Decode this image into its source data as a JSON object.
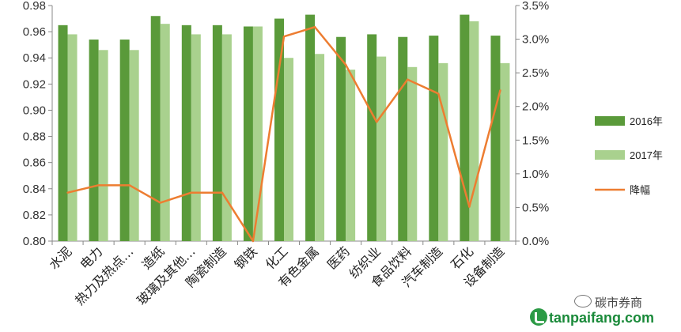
{
  "chart_data": {
    "type": "bar",
    "categories": [
      "水泥",
      "电力",
      "热力及热点…",
      "造纸",
      "玻璃及其他…",
      "陶瓷制造",
      "钢铁",
      "化工",
      "有色金属",
      "医药",
      "纺织业",
      "食品饮料",
      "汽车制造",
      "石化",
      "设备制造"
    ],
    "series": [
      {
        "name": "2016年",
        "axis": "left",
        "kind": "bar",
        "color": "#5a9a3a",
        "values": [
          0.965,
          0.954,
          0.954,
          0.972,
          0.965,
          0.965,
          0.964,
          0.97,
          0.973,
          0.956,
          0.958,
          0.956,
          0.957,
          0.973,
          0.957
        ]
      },
      {
        "name": "2017年",
        "axis": "left",
        "kind": "bar",
        "color": "#a9d18e",
        "values": [
          0.958,
          0.946,
          0.946,
          0.966,
          0.958,
          0.958,
          0.964,
          0.94,
          0.943,
          0.931,
          0.941,
          0.933,
          0.936,
          0.968,
          0.936
        ]
      },
      {
        "name": "降幅",
        "axis": "right",
        "kind": "line",
        "color": "#ed7d31",
        "values": [
          0.0072,
          0.0083,
          0.0083,
          0.0057,
          0.0072,
          0.0072,
          0.0,
          0.0304,
          0.0318,
          0.0262,
          0.0177,
          0.024,
          0.0219,
          0.0051,
          0.0224
        ]
      }
    ],
    "left_axis": {
      "ylim": [
        0.8,
        0.98
      ],
      "ticks": [
        "0.80",
        "0.82",
        "0.84",
        "0.86",
        "0.88",
        "0.90",
        "0.92",
        "0.94",
        "0.96",
        "0.98"
      ]
    },
    "right_axis": {
      "ylim": [
        0,
        0.035
      ],
      "ticks": [
        "0.0%",
        "0.5%",
        "1.0%",
        "1.5%",
        "2.0%",
        "2.5%",
        "3.0%",
        "3.5%"
      ]
    },
    "grid": false,
    "legend": {
      "position": "right"
    }
  },
  "watermark": {
    "name": "碳市券商",
    "url": "tanpaifang.com",
    "logo_icon": "tanpaifang-logo-icon",
    "chat_icon": "wechat-icon"
  }
}
